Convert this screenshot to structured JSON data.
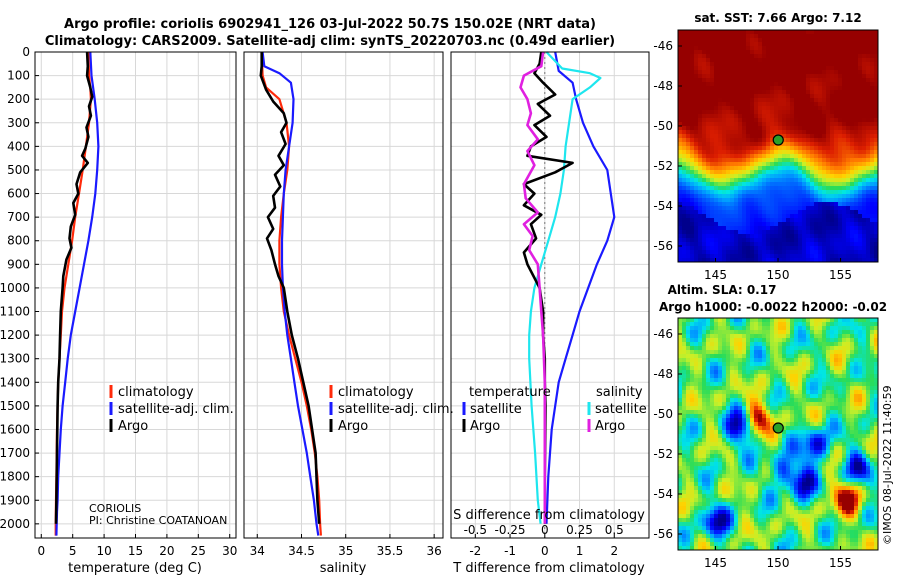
{
  "header": {
    "line1": "Argo profile: coriolis 6902941_126 03-Jul-2022 50.7S 150.02E (NRT data)",
    "line2": "Climatology: CARS2009. Satellite-adj clim: synTS_20220703.nc (0.49d earlier)"
  },
  "colors": {
    "clim": "#ff2a0a",
    "sat": "#1a1aff",
    "argo": "#000000",
    "argo_s": "#e020e0",
    "sat_s": "#1ee6ee",
    "marker": "#2aa02a"
  },
  "chart_data": [
    {
      "type": "line",
      "id": "temperature",
      "xlabel": "temperature (deg C)",
      "ylabel": "",
      "xlim": [
        -1,
        31
      ],
      "ylim": [
        2060,
        0
      ],
      "xticks": [
        0,
        5,
        10,
        15,
        20,
        25,
        30
      ],
      "yticks": [
        0,
        100,
        200,
        300,
        400,
        500,
        600,
        700,
        800,
        900,
        1000,
        1100,
        1200,
        1300,
        1400,
        1500,
        1600,
        1700,
        1800,
        1900,
        2000
      ],
      "legend": [
        "climatology",
        "satellite-adj. clim.",
        "Argo"
      ],
      "footer": [
        "CORIOLIS",
        "PI: Christine COATANOAN"
      ],
      "series": [
        {
          "name": "climatology",
          "color": "#ff2a0a",
          "x": [
            7.5,
            7.6,
            7.8,
            7.9,
            7.6,
            7.1,
            6.6,
            6.0,
            5.4,
            4.9,
            4.3,
            3.7,
            3.3,
            3.1,
            2.9,
            2.7,
            2.6,
            2.5,
            2.45,
            2.4,
            2.35,
            2.3,
            2.3
          ],
          "y": [
            0,
            100,
            150,
            200,
            300,
            400,
            500,
            600,
            700,
            800,
            900,
            1000,
            1100,
            1200,
            1300,
            1400,
            1500,
            1600,
            1700,
            1800,
            1900,
            2000,
            2050
          ]
        },
        {
          "name": "satellite-adj. clim.",
          "color": "#1a1aff",
          "x": [
            7.8,
            8.0,
            8.5,
            8.9,
            9.1,
            8.9,
            8.6,
            8.1,
            7.5,
            6.8,
            6.1,
            5.4,
            4.7,
            4.2,
            3.8,
            3.4,
            3.1,
            2.9,
            2.7,
            2.6,
            2.5,
            2.45,
            2.4
          ],
          "y": [
            0,
            100,
            200,
            300,
            400,
            500,
            600,
            700,
            800,
            900,
            1000,
            1100,
            1200,
            1300,
            1400,
            1500,
            1600,
            1700,
            1800,
            1900,
            1950,
            2000,
            2050
          ]
        },
        {
          "name": "Argo",
          "color": "#000000",
          "x": [
            7.3,
            7.4,
            7.3,
            7.8,
            8.1,
            7.6,
            7.9,
            7.2,
            7.5,
            7.0,
            6.5,
            7.4,
            6.2,
            5.6,
            5.9,
            5.1,
            5.4,
            4.7,
            4.5,
            4.8,
            4.0,
            3.5,
            3.4,
            3.1,
            3.0,
            2.9,
            2.7,
            2.6,
            2.5,
            2.4,
            2.35
          ],
          "y": [
            0,
            60,
            100,
            150,
            190,
            230,
            270,
            320,
            360,
            410,
            440,
            470,
            510,
            560,
            600,
            640,
            690,
            740,
            790,
            830,
            880,
            950,
            1000,
            1100,
            1200,
            1300,
            1400,
            1500,
            1700,
            1900,
            2000
          ]
        }
      ]
    },
    {
      "type": "line",
      "id": "salinity",
      "xlabel": "salinity",
      "ylabel": "",
      "xlim": [
        33.85,
        36.1
      ],
      "ylim": [
        2060,
        0
      ],
      "xticks": [
        34,
        34.5,
        35,
        35.5,
        36
      ],
      "xticklabels": [
        "34",
        "34.5",
        "35",
        "35.5",
        "36"
      ],
      "legend": [
        "climatology",
        "satellite-adj. clim.",
        "Argo"
      ],
      "series": [
        {
          "name": "climatology",
          "color": "#ff2a0a",
          "x": [
            34.05,
            34.06,
            34.1,
            34.25,
            34.33,
            34.36,
            34.34,
            34.3,
            34.27,
            34.25,
            34.25,
            34.27,
            34.3,
            34.36,
            34.43,
            34.5,
            34.56,
            34.61,
            34.65,
            34.68,
            34.7,
            34.71,
            34.72
          ],
          "y": [
            0,
            100,
            150,
            200,
            300,
            400,
            500,
            600,
            700,
            800,
            900,
            1000,
            1100,
            1200,
            1300,
            1400,
            1500,
            1600,
            1700,
            1800,
            1900,
            2000,
            2050
          ]
        },
        {
          "name": "satellite-adj. clim.",
          "color": "#1a1aff",
          "x": [
            34.06,
            34.08,
            34.25,
            34.38,
            34.41,
            34.4,
            34.36,
            34.32,
            34.3,
            34.29,
            34.28,
            34.28,
            34.29,
            34.31,
            34.34,
            34.38,
            34.42,
            34.46,
            34.51,
            34.56,
            34.6,
            34.64,
            34.67,
            34.69
          ],
          "y": [
            0,
            60,
            90,
            130,
            200,
            300,
            400,
            500,
            600,
            700,
            800,
            900,
            1000,
            1100,
            1200,
            1300,
            1400,
            1500,
            1600,
            1700,
            1800,
            1900,
            2000,
            2050
          ]
        },
        {
          "name": "Argo",
          "color": "#000000",
          "x": [
            34.05,
            34.05,
            34.04,
            34.1,
            34.18,
            34.3,
            34.33,
            34.27,
            34.32,
            34.24,
            34.3,
            34.2,
            34.26,
            34.18,
            34.2,
            34.12,
            34.18,
            34.11,
            34.16,
            34.2,
            34.24,
            34.3,
            34.34,
            34.39,
            34.46,
            34.52,
            34.58,
            34.62,
            34.66,
            34.68,
            34.7
          ],
          "y": [
            0,
            60,
            100,
            160,
            210,
            260,
            300,
            340,
            390,
            440,
            480,
            520,
            570,
            610,
            660,
            700,
            750,
            790,
            840,
            900,
            950,
            1000,
            1100,
            1200,
            1300,
            1400,
            1500,
            1600,
            1700,
            1900,
            2000
          ]
        }
      ]
    },
    {
      "type": "line",
      "id": "difference",
      "xlabel": "T difference from climatology",
      "xlabel_top": "S difference from climatology",
      "xlim": [
        -2.7,
        3.0
      ],
      "ylim": [
        2060,
        0
      ],
      "xticks": [
        -2,
        -1,
        0,
        1,
        2
      ],
      "xticklabels": [
        "-2",
        "-1",
        "0",
        "1",
        "2"
      ],
      "sxticklabels": [
        "-0.5",
        "-0.25",
        "0",
        "0.25",
        "0.5"
      ],
      "legend_titles": [
        "temperature",
        "salinity"
      ],
      "legend_left": [
        "satellite",
        "Argo"
      ],
      "legend_right": [
        "satellite",
        "Argo"
      ],
      "series": [
        {
          "name": "T satellite",
          "color": "#1a1aff",
          "x": [
            0.3,
            0.4,
            0.8,
            0.9,
            1.1,
            1.4,
            1.8,
            1.9,
            2.0,
            1.8,
            1.5,
            1.25,
            1.0,
            0.8,
            0.6,
            0.4,
            0.3,
            0.2,
            0.1,
            0.05
          ],
          "y": [
            0,
            80,
            130,
            200,
            300,
            400,
            500,
            600,
            700,
            800,
            900,
            1000,
            1100,
            1200,
            1300,
            1400,
            1500,
            1600,
            1800,
            2000
          ]
        },
        {
          "name": "S satellite",
          "color": "#1ee6ee",
          "x": [
            0.05,
            0.5,
            1.3,
            1.6,
            1.3,
            0.8,
            0.7,
            0.6,
            0.55,
            0.45,
            0.3,
            0.1,
            -0.1,
            -0.3,
            -0.4,
            -0.45,
            -0.45,
            -0.38,
            -0.28,
            -0.2,
            -0.12
          ],
          "y": [
            0,
            70,
            90,
            110,
            150,
            200,
            300,
            400,
            500,
            600,
            700,
            800,
            900,
            1000,
            1100,
            1200,
            1300,
            1500,
            1700,
            1900,
            2000
          ]
        },
        {
          "name": "T Argo",
          "color": "#000000",
          "x": [
            -0.1,
            -0.15,
            -0.3,
            -0.05,
            0.3,
            -0.2,
            0.15,
            -0.3,
            0.05,
            -0.4,
            -0.5,
            0.8,
            0.3,
            -0.6,
            -0.3,
            -0.6,
            -0.1,
            -0.4,
            -0.25,
            -0.6,
            -0.5,
            -0.15,
            -0.05,
            -0.05,
            0.0,
            0.0,
            0.02,
            0.0,
            0.0
          ],
          "y": [
            0,
            50,
            90,
            130,
            180,
            220,
            270,
            310,
            360,
            400,
            440,
            470,
            510,
            560,
            600,
            650,
            690,
            730,
            790,
            850,
            900,
            1000,
            1100,
            1200,
            1300,
            1400,
            1500,
            1800,
            2000
          ]
        },
        {
          "name": "S Argo",
          "color": "#e020e0",
          "x": [
            -0.05,
            -0.1,
            -0.6,
            -0.7,
            -0.5,
            -0.4,
            -0.5,
            -0.2,
            -0.5,
            -0.3,
            -0.6,
            -0.55,
            -0.2,
            -0.6,
            -0.35,
            -0.45,
            -0.2,
            -0.15,
            -0.1,
            -0.05,
            0.0,
            0.0,
            0.0
          ],
          "y": [
            0,
            60,
            100,
            150,
            200,
            260,
            310,
            370,
            420,
            480,
            560,
            620,
            680,
            730,
            780,
            840,
            900,
            1000,
            1100,
            1200,
            1400,
            1700,
            2000
          ]
        }
      ]
    },
    {
      "type": "heatmap",
      "id": "sst_map",
      "title": "sat. SST: 7.66 Argo: 7.12",
      "xlim": [
        142,
        158
      ],
      "ylim": [
        -56.8,
        -45.2
      ],
      "xticks": [
        145,
        150,
        155
      ],
      "yticks": [
        -46,
        -48,
        -50,
        -52,
        -54,
        -56
      ],
      "marker": {
        "lon": 150.02,
        "lat": -50.7
      }
    },
    {
      "type": "heatmap",
      "id": "sla_map",
      "title_lines": [
        "Altim. SLA: 0.17",
        "Argo h1000: -0.0022 h2000: -0.02"
      ],
      "xlim": [
        142,
        158
      ],
      "ylim": [
        -56.8,
        -45.2
      ],
      "xticks": [
        145,
        150,
        155
      ],
      "yticks": [
        -46,
        -48,
        -50,
        -52,
        -54,
        -56
      ],
      "marker": {
        "lon": 150.02,
        "lat": -50.7
      }
    }
  ],
  "watermark": "©IMOS 08-Jul-2022 11:40:59"
}
